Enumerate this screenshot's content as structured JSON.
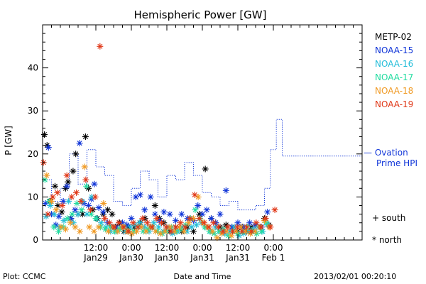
{
  "chart_data": {
    "type": "scatter",
    "title": "Hemispheric Power [GW]",
    "xlabel": "Date and Time",
    "ylabel": "P [GW]",
    "ylim": [
      0,
      50
    ],
    "xlim_hours": [
      0,
      108
    ],
    "y_ticks": [
      0,
      10,
      20,
      30,
      40
    ],
    "x_ticks": [
      {
        "h": 18,
        "top": "12:00",
        "bottom": "Jan29"
      },
      {
        "h": 30,
        "top": "0:00",
        "bottom": "Jan30"
      },
      {
        "h": 42,
        "top": "12:00",
        "bottom": "Jan30"
      },
      {
        "h": 54,
        "top": "0:00",
        "bottom": "Jan31"
      },
      {
        "h": 66,
        "top": "12:00",
        "bottom": "Jan31"
      },
      {
        "h": 78,
        "top": "0:00",
        "bottom": "Feb 1"
      }
    ],
    "footer_left": "Plot: CCMC",
    "footer_right": "2013/02/01 00:20:10",
    "legend_position": "right",
    "series": [
      {
        "name": "METP-02",
        "color": "#000000",
        "points": [
          [
            0.6,
            24.5
          ],
          [
            1.5,
            22
          ],
          [
            2.5,
            9
          ],
          [
            4.2,
            12.5
          ],
          [
            5.2,
            8
          ],
          [
            6.5,
            6.5
          ],
          [
            7.8,
            12
          ],
          [
            8.6,
            13.5
          ],
          [
            9.5,
            5
          ],
          [
            10.3,
            16
          ],
          [
            11.2,
            20
          ],
          [
            12,
            6
          ],
          [
            13.5,
            6
          ],
          [
            14.5,
            24
          ],
          [
            15.5,
            12
          ],
          [
            17,
            7
          ],
          [
            18.5,
            5
          ],
          [
            20.5,
            6
          ],
          [
            22,
            7
          ],
          [
            23.5,
            6
          ],
          [
            24.6,
            3
          ],
          [
            26,
            4
          ],
          [
            27.5,
            2
          ],
          [
            29,
            3
          ],
          [
            31,
            3
          ],
          [
            33,
            4
          ],
          [
            34.6,
            5
          ],
          [
            36.5,
            3
          ],
          [
            38,
            8
          ],
          [
            39.5,
            5
          ],
          [
            41,
            4
          ],
          [
            43,
            2
          ],
          [
            45,
            3
          ],
          [
            47,
            2
          ],
          [
            49,
            3
          ],
          [
            51,
            2
          ],
          [
            53,
            6
          ],
          [
            55,
            16.5
          ],
          [
            57,
            5
          ],
          [
            58.5,
            4
          ],
          [
            60,
            3
          ],
          [
            62,
            3.5
          ],
          [
            64,
            3
          ],
          [
            66,
            2
          ],
          [
            67.5,
            3
          ],
          [
            69,
            2
          ],
          [
            70.5,
            3
          ],
          [
            72,
            3.5
          ],
          [
            73.5,
            3
          ],
          [
            75,
            5
          ],
          [
            76.5,
            3.5
          ]
        ]
      },
      {
        "name": "NOAA-15",
        "color": "#1035d8",
        "points": [
          [
            1,
            8.5
          ],
          [
            2,
            21.5
          ],
          [
            3,
            6
          ],
          [
            4.5,
            3.5
          ],
          [
            5.5,
            5.5
          ],
          [
            7,
            9
          ],
          [
            8.2,
            12.5
          ],
          [
            9.6,
            5
          ],
          [
            11,
            7
          ],
          [
            12.5,
            22.5
          ],
          [
            14,
            8.5
          ],
          [
            15.5,
            8
          ],
          [
            16.5,
            9.5
          ],
          [
            17.5,
            13
          ],
          [
            19,
            7.5
          ],
          [
            20.5,
            6.5
          ],
          [
            22,
            4
          ],
          [
            23.5,
            3
          ],
          [
            25,
            3
          ],
          [
            27,
            4
          ],
          [
            28.5,
            3.5
          ],
          [
            30,
            5
          ],
          [
            31.5,
            10
          ],
          [
            33,
            10.5
          ],
          [
            34.5,
            7
          ],
          [
            36.5,
            10
          ],
          [
            38,
            6
          ],
          [
            39.5,
            4.5
          ],
          [
            41,
            6.5
          ],
          [
            43,
            6
          ],
          [
            45,
            4.5
          ],
          [
            47,
            6
          ],
          [
            49,
            5
          ],
          [
            51,
            4.5
          ],
          [
            52.5,
            8
          ],
          [
            54,
            6
          ],
          [
            55.5,
            7
          ],
          [
            57,
            5
          ],
          [
            58.5,
            4
          ],
          [
            60,
            6
          ],
          [
            62,
            11.5
          ],
          [
            64,
            3
          ],
          [
            66,
            4
          ],
          [
            68,
            3
          ],
          [
            70,
            4
          ],
          [
            72,
            3.5
          ],
          [
            74,
            3
          ],
          [
            76,
            6.5
          ]
        ]
      },
      {
        "name": "NOAA-16",
        "color": "#22bcd8",
        "points": [
          [
            1.2,
            5.5
          ],
          [
            2.6,
            8
          ],
          [
            4,
            6
          ],
          [
            5.6,
            3
          ],
          [
            7.2,
            4.5
          ],
          [
            8.8,
            9
          ],
          [
            10.4,
            4
          ],
          [
            12,
            6
          ],
          [
            13.4,
            9
          ],
          [
            15,
            6
          ],
          [
            16.6,
            10
          ],
          [
            18.2,
            5
          ],
          [
            19.8,
            4
          ],
          [
            21.4,
            3
          ],
          [
            23,
            2
          ],
          [
            24.8,
            2
          ],
          [
            26.4,
            3
          ],
          [
            28,
            2
          ],
          [
            29.6,
            3
          ],
          [
            31.2,
            3.5
          ],
          [
            32.8,
            4
          ],
          [
            34.4,
            3
          ],
          [
            36,
            2
          ],
          [
            37.6,
            4
          ],
          [
            39.2,
            3
          ],
          [
            40.8,
            2
          ],
          [
            42.4,
            3
          ],
          [
            44,
            1.5
          ],
          [
            45.6,
            2
          ],
          [
            47.2,
            3
          ],
          [
            48.8,
            2
          ],
          [
            50.4,
            3
          ],
          [
            52,
            3.5
          ],
          [
            53.6,
            4
          ],
          [
            55.2,
            3
          ],
          [
            56.8,
            2
          ],
          [
            58.4,
            3
          ],
          [
            60,
            2
          ],
          [
            61.6,
            1.5
          ],
          [
            63.2,
            2
          ],
          [
            64.8,
            3
          ],
          [
            66.4,
            1
          ],
          [
            68,
            1.5
          ],
          [
            69.6,
            2
          ],
          [
            71.2,
            2.5
          ],
          [
            72.8,
            3
          ],
          [
            74.4,
            2
          ],
          [
            76,
            3.5
          ]
        ]
      },
      {
        "name": "NOAA-17",
        "color": "#22dca0",
        "points": [
          [
            0.8,
            14
          ],
          [
            2.2,
            9
          ],
          [
            3.8,
            3
          ],
          [
            5.4,
            2
          ],
          [
            7,
            3
          ],
          [
            8.4,
            5
          ],
          [
            10,
            6
          ],
          [
            11.6,
            8.5
          ],
          [
            13.2,
            7
          ],
          [
            14.8,
            12.5
          ],
          [
            16.4,
            6
          ],
          [
            18,
            5
          ],
          [
            19.6,
            3
          ],
          [
            21.2,
            2.5
          ],
          [
            22.8,
            3
          ],
          [
            24.4,
            2
          ],
          [
            26,
            2.5
          ],
          [
            27.6,
            3
          ],
          [
            29.2,
            2
          ],
          [
            30.8,
            2
          ],
          [
            32.4,
            3
          ],
          [
            34,
            2
          ],
          [
            35.6,
            2.5
          ],
          [
            37.2,
            3
          ],
          [
            38.8,
            2
          ],
          [
            40.4,
            1.5
          ],
          [
            42,
            2
          ],
          [
            43.6,
            3
          ],
          [
            45.2,
            2
          ],
          [
            46.8,
            2.5
          ],
          [
            48.4,
            3.5
          ],
          [
            50,
            5
          ],
          [
            51.6,
            7
          ],
          [
            53.2,
            5
          ],
          [
            54.8,
            3
          ],
          [
            56.4,
            2
          ],
          [
            58,
            1.5
          ],
          [
            59.6,
            2
          ],
          [
            61.2,
            2.5
          ],
          [
            62.8,
            1
          ],
          [
            64.4,
            2
          ],
          [
            66,
            1.5
          ],
          [
            67.6,
            2
          ],
          [
            69.2,
            3
          ],
          [
            70.8,
            2
          ],
          [
            72.4,
            1.5
          ],
          [
            74,
            2
          ],
          [
            75.6,
            4
          ]
        ]
      },
      {
        "name": "NOAA-18",
        "color": "#f09a24",
        "points": [
          [
            1.4,
            15
          ],
          [
            3,
            9
          ],
          [
            4.6,
            7
          ],
          [
            6.2,
            3
          ],
          [
            7.8,
            2.5
          ],
          [
            9.4,
            4
          ],
          [
            11,
            3
          ],
          [
            12.6,
            2
          ],
          [
            14.2,
            17
          ],
          [
            15.8,
            3
          ],
          [
            17.4,
            2
          ],
          [
            19,
            3
          ],
          [
            20.6,
            8.5
          ],
          [
            22.2,
            2
          ],
          [
            23.8,
            3
          ],
          [
            25.4,
            2
          ],
          [
            27,
            3
          ],
          [
            28.6,
            2
          ],
          [
            30.2,
            1.5
          ],
          [
            31.8,
            2
          ],
          [
            33.4,
            3
          ],
          [
            35,
            2
          ],
          [
            36.6,
            3
          ],
          [
            38.2,
            2
          ],
          [
            39.8,
            1.5
          ],
          [
            41.4,
            2
          ],
          [
            43,
            3
          ],
          [
            44.6,
            2
          ],
          [
            46.2,
            3
          ],
          [
            47.8,
            2
          ],
          [
            49.4,
            4
          ],
          [
            51,
            5
          ],
          [
            52.6,
            10
          ],
          [
            54.2,
            4
          ],
          [
            55.8,
            3
          ],
          [
            57.4,
            2
          ],
          [
            59,
            0.5
          ],
          [
            60.6,
            1.5
          ],
          [
            62.2,
            2
          ],
          [
            63.8,
            1
          ],
          [
            65.4,
            2
          ],
          [
            67,
            3
          ],
          [
            68.6,
            2
          ],
          [
            70.2,
            1.5
          ],
          [
            71.8,
            2
          ],
          [
            73.4,
            3
          ],
          [
            75,
            4.5
          ],
          [
            76.6,
            3
          ]
        ]
      },
      {
        "name": "NOAA-19",
        "color": "#e03818",
        "points": [
          [
            0.3,
            18
          ],
          [
            1.8,
            6
          ],
          [
            3.4,
            10
          ],
          [
            5,
            11
          ],
          [
            6.6,
            8
          ],
          [
            8.2,
            15
          ],
          [
            9.8,
            10
          ],
          [
            11.4,
            11
          ],
          [
            13,
            9
          ],
          [
            14.6,
            14
          ],
          [
            16.2,
            7
          ],
          [
            17.8,
            10
          ],
          [
            19.4,
            45
          ],
          [
            21,
            5
          ],
          [
            22.6,
            4
          ],
          [
            24.2,
            3
          ],
          [
            25.8,
            4
          ],
          [
            27.4,
            3
          ],
          [
            29,
            2
          ],
          [
            30.6,
            4
          ],
          [
            32.2,
            3
          ],
          [
            33.8,
            5
          ],
          [
            35.4,
            4
          ],
          [
            37,
            3
          ],
          [
            38.6,
            5
          ],
          [
            40.2,
            4
          ],
          [
            41.8,
            3
          ],
          [
            43.4,
            2
          ],
          [
            45,
            3
          ],
          [
            46.6,
            4
          ],
          [
            48.2,
            3
          ],
          [
            49.8,
            5
          ],
          [
            51.4,
            10.5
          ],
          [
            53,
            5
          ],
          [
            54.6,
            4
          ],
          [
            56.2,
            3
          ],
          [
            57.8,
            4
          ],
          [
            59.4,
            3
          ],
          [
            61,
            2
          ],
          [
            62.6,
            3
          ],
          [
            64.2,
            2
          ],
          [
            65.8,
            3
          ],
          [
            67.4,
            2
          ],
          [
            69,
            3
          ],
          [
            70.6,
            2
          ],
          [
            72.2,
            4
          ],
          [
            73.8,
            3
          ],
          [
            75.4,
            5
          ],
          [
            77,
            3
          ],
          [
            78.5,
            7
          ]
        ]
      }
    ],
    "ovation": {
      "label_line1": "— Ovation",
      "label_line2": "Prime HPI",
      "color": "#1035d8",
      "step_x": [
        0,
        3,
        6,
        9,
        12,
        15,
        18,
        21,
        24,
        27,
        30,
        33,
        36,
        39,
        42,
        45,
        48,
        51,
        54,
        57,
        60,
        63,
        66,
        69,
        72,
        75,
        77,
        79,
        81
      ],
      "step_y": [
        14,
        9,
        12,
        20,
        13,
        21,
        17,
        15,
        9,
        8,
        12,
        16,
        14,
        10,
        15,
        14,
        18,
        15,
        11,
        10,
        8,
        9,
        7,
        7,
        8,
        12,
        21,
        28,
        19.5
      ]
    },
    "marker_legend": [
      {
        "symbol": "+",
        "label": "south"
      },
      {
        "symbol": "*",
        "label": "north"
      }
    ]
  }
}
